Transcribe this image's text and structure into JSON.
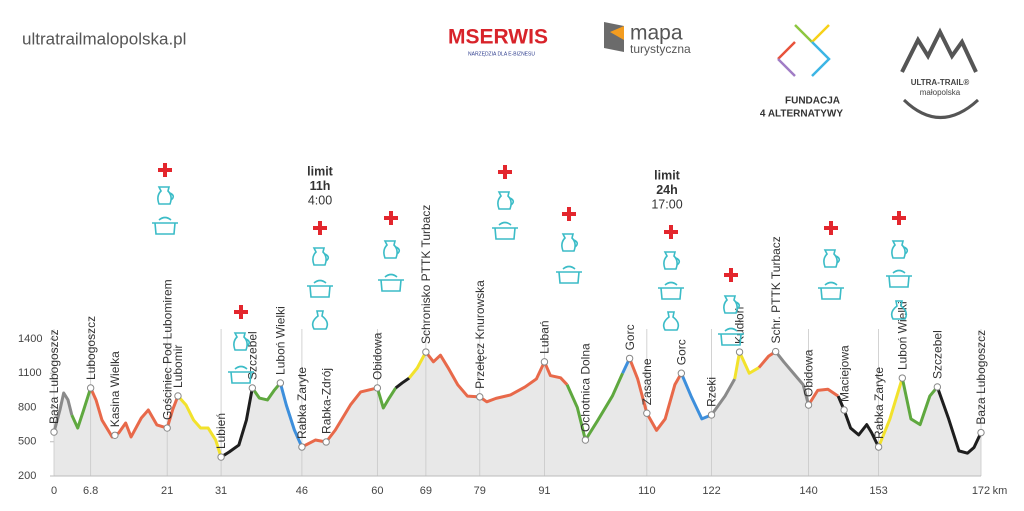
{
  "site": "ultratrailmalopolska.pl",
  "logos": {
    "mserwis": "MSERWIS",
    "mserwis_tag": "NARZĘDZIA DLA E-BIZNESU",
    "mapa": "mapa",
    "mapa_sub": "turystyczna",
    "fundacja": "FUNDACJA",
    "fundacja_sub": "4 ALTERNATYWY",
    "utm": "ULTRA-TRAIL®",
    "utm_sub": "małopolska"
  },
  "chart_data": {
    "type": "line",
    "xlim": [
      0,
      172
    ],
    "xticks": [
      0,
      6.8,
      21,
      31,
      46,
      60,
      69,
      79,
      91,
      110,
      122,
      140,
      153,
      172
    ],
    "x_unit": "km",
    "ylim": [
      200,
      1400
    ],
    "yticks": [
      200,
      500,
      800,
      1100,
      1400
    ],
    "annotations": [
      [
        "limit",
        "11h",
        "4:00"
      ],
      [
        "limit",
        "24h",
        "17:00"
      ]
    ],
    "series": [
      {
        "color": "#8a8a8a",
        "x": [
          0,
          1.1,
          1.8,
          2.6,
          3.3
        ],
        "values": [
          585,
          778,
          927,
          866,
          734
        ]
      },
      {
        "color": "#5fa83f",
        "x": [
          3.3,
          4.4,
          5.5,
          6.8
        ],
        "values": [
          734,
          620,
          778,
          971
        ]
      },
      {
        "color": "#e8694a",
        "x": [
          6.8,
          7.8,
          8.9,
          10.8,
          12,
          13.3,
          14.3,
          16.2,
          17.5,
          19.1,
          21,
          22,
          23
        ],
        "values": [
          971,
          866,
          690,
          542,
          577,
          664,
          542,
          708,
          778,
          647,
          620,
          778,
          901
        ]
      },
      {
        "color": "#f2e22c",
        "x": [
          23,
          24.5,
          25.9,
          27.2,
          28.6,
          30,
          31
        ],
        "values": [
          901,
          822,
          690,
          620,
          620,
          515,
          366
        ]
      },
      {
        "color": "#1e1e1e",
        "x": [
          31,
          32.5,
          34.3,
          35.7,
          36.8
        ],
        "values": [
          366,
          410,
          471,
          690,
          971
        ]
      },
      {
        "color": "#5fa83f",
        "x": [
          36.8,
          38.1,
          39.6,
          40.9,
          42
        ],
        "values": [
          971,
          883,
          866,
          953,
          1015
        ]
      },
      {
        "color": "#3d8fdc",
        "x": [
          42,
          43.1,
          44.6,
          46
        ],
        "values": [
          1015,
          822,
          603,
          454
        ]
      },
      {
        "color": "#e8694a",
        "x": [
          46,
          48.5,
          50.5,
          52.2,
          55,
          56.9,
          60
        ],
        "values": [
          454,
          515,
          498,
          603,
          822,
          936,
          971
        ]
      },
      {
        "color": "#5fa83f",
        "x": [
          60,
          61.1,
          62.2,
          63.4
        ],
        "values": [
          971,
          796,
          883,
          971
        ]
      },
      {
        "color": "#1e1e1e",
        "x": [
          63.4,
          64.6,
          65.9
        ],
        "values": [
          971,
          1015,
          1058
        ]
      },
      {
        "color": "#f2e22c",
        "x": [
          65.9,
          67.4,
          69
        ],
        "values": [
          1058,
          1146,
          1286
        ]
      },
      {
        "color": "#e8694a",
        "x": [
          69,
          70.4,
          71.7,
          73.1,
          74.9,
          76.7,
          79,
          80.3,
          82,
          84.7,
          87.4,
          89.5,
          91,
          92.1,
          94,
          95.2
        ],
        "values": [
          1286,
          1200,
          1258,
          1150,
          1000,
          900,
          893,
          850,
          880,
          910,
          980,
          1050,
          1200,
          1080,
          1060,
          1000
        ]
      },
      {
        "color": "#5fa83f",
        "x": [
          95.2,
          97.1,
          98.6,
          100.8,
          103.6,
          105.5
        ],
        "values": [
          1000,
          800,
          515,
          680,
          900,
          1100
        ]
      },
      {
        "color": "#3d8fdc",
        "x": [
          105.5,
          106.8
        ],
        "values": [
          1100,
          1230
        ]
      },
      {
        "color": "#e8694a",
        "x": [
          106.8,
          108.3,
          110,
          111.8,
          113.4,
          115.2,
          116.4
        ],
        "values": [
          1230,
          1050,
          750,
          600,
          700,
          1000,
          1100
        ]
      },
      {
        "color": "#3d8fdc",
        "x": [
          116.4,
          118.2,
          120.2,
          122
        ],
        "values": [
          1100,
          900,
          700,
          735
        ]
      },
      {
        "color": "#8a8a8a",
        "x": [
          122,
          124.5,
          126.3
        ],
        "values": [
          735,
          900,
          1050
        ]
      },
      {
        "color": "#f2e22c",
        "x": [
          126.3,
          127.2,
          129,
          130.8
        ],
        "values": [
          1050,
          1286,
          1100,
          1150
        ]
      },
      {
        "color": "#e8694a",
        "x": [
          130.8,
          132.6,
          133.9
        ],
        "values": [
          1150,
          1250,
          1290
        ]
      },
      {
        "color": "#8a8a8a",
        "x": [
          133.9,
          135.4,
          137.2,
          139,
          140
        ],
        "values": [
          1290,
          1200,
          1100,
          1000,
          822
        ]
      },
      {
        "color": "#e8694a",
        "x": [
          140,
          141.7,
          143.6,
          145.5
        ],
        "values": [
          822,
          950,
          960,
          900
        ]
      },
      {
        "color": "#1e1e1e",
        "x": [
          145.5,
          146.6,
          147.8,
          149.3,
          150.8,
          151.7,
          153
        ],
        "values": [
          900,
          778,
          620,
          560,
          650,
          580,
          454
        ]
      },
      {
        "color": "#f2e22c",
        "x": [
          153,
          155.1,
          157.4
        ],
        "values": [
          454,
          700,
          1058
        ]
      },
      {
        "color": "#5fa83f",
        "x": [
          157.4,
          159,
          160.7,
          162.5,
          163.9
        ],
        "values": [
          1058,
          700,
          650,
          900,
          980
        ]
      },
      {
        "color": "#1e1e1e",
        "x": [
          163.9,
          166,
          167.9,
          169.5,
          170.7,
          172
        ],
        "values": [
          980,
          700,
          420,
          400,
          450,
          580
        ]
      }
    ],
    "waypoints": [
      {
        "name": "Baza Lubogoszcz",
        "x": 0
      },
      {
        "name": "Lubogoszcz",
        "x": 6.8
      },
      {
        "name": "Kasina Wielka",
        "x": 11.3
      },
      {
        "name": "Gościniec Pod Lubomirem",
        "x": 21
      },
      {
        "name": "Lubomir",
        "x": 23
      },
      {
        "name": "Lubień",
        "x": 31
      },
      {
        "name": "Szczebel",
        "x": 36.8
      },
      {
        "name": "Luboń Wielki",
        "x": 42
      },
      {
        "name": "Rabka Zaryte",
        "x": 46
      },
      {
        "name": "Rabka-Zdrój",
        "x": 50.5
      },
      {
        "name": "Obidowa",
        "x": 60
      },
      {
        "name": "Schronisko PTTK Turbacz",
        "x": 69
      },
      {
        "name": "Przełęcz Knurowska",
        "x": 79
      },
      {
        "name": "Lubań",
        "x": 91
      },
      {
        "name": "Ochotnica Dolna",
        "x": 98.6
      },
      {
        "name": "Gorc",
        "x": 106.8
      },
      {
        "name": "Zasadne",
        "x": 110
      },
      {
        "name": "Gorc",
        "x": 116.4
      },
      {
        "name": "Rzeki",
        "x": 122
      },
      {
        "name": "Kudłoń",
        "x": 127.2
      },
      {
        "name": "Schr. PTTK Turbacz",
        "x": 133.9
      },
      {
        "name": "Obidowa",
        "x": 140
      },
      {
        "name": "Maciejowa",
        "x": 146.6
      },
      {
        "name": "Rabka Zaryte",
        "x": 153
      },
      {
        "name": "Luboń Wielki",
        "x": 157.4
      },
      {
        "name": "Szczebel",
        "x": 163.9
      },
      {
        "name": "Baza Lubogoszcz",
        "x": 172
      }
    ]
  }
}
